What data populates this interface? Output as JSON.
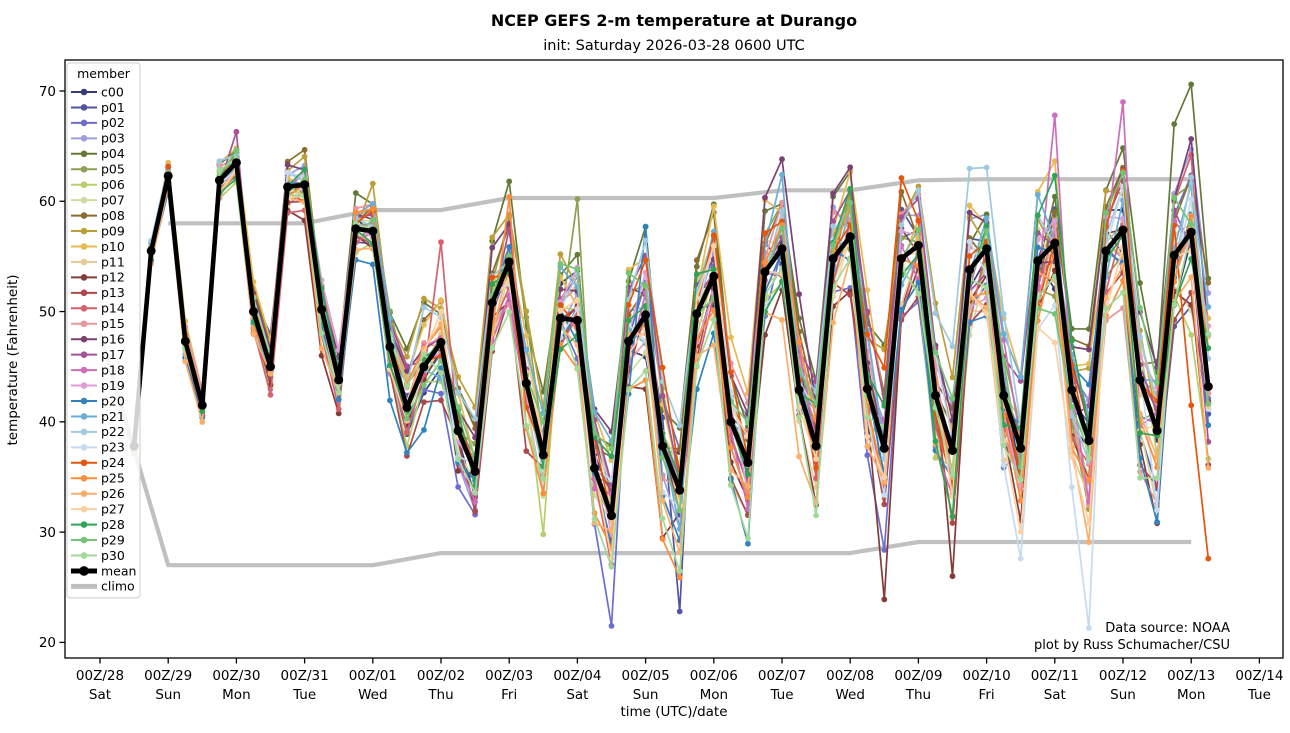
{
  "title": "NCEP GEFS 2-m temperature at Durango",
  "subtitle": "init: Saturday 2026-03-28 0600 UTC",
  "xlabel": "time (UTC)/date",
  "ylabel": "temperature (Fahrenheit)",
  "annotation": {
    "line1": "Data source: NOAA",
    "line2": "plot by Russ Schumacher/CSU"
  },
  "legend": {
    "title": "member",
    "mean_label": "mean",
    "climo_label": "climo"
  },
  "chart_data": {
    "type": "line",
    "title": "NCEP GEFS 2-m temperature at Durango",
    "subtitle": "init: Saturday 2026-03-28 0600 UTC",
    "xlabel": "time (UTC)/date",
    "ylabel": "temperature (Fahrenheit)",
    "grid": false,
    "legend_position": "upper left",
    "y_ticks": [
      20,
      30,
      40,
      50,
      60,
      70
    ],
    "ylim": [
      18.6,
      72.8
    ],
    "x_day_ticks": [
      {
        "utc": "00Z/28",
        "day": "Sat"
      },
      {
        "utc": "00Z/29",
        "day": "Sun"
      },
      {
        "utc": "00Z/30",
        "day": "Mon"
      },
      {
        "utc": "00Z/31",
        "day": "Tue"
      },
      {
        "utc": "00Z/01",
        "day": "Wed"
      },
      {
        "utc": "00Z/02",
        "day": "Thu"
      },
      {
        "utc": "00Z/03",
        "day": "Fri"
      },
      {
        "utc": "00Z/04",
        "day": "Sat"
      },
      {
        "utc": "00Z/05",
        "day": "Sun"
      },
      {
        "utc": "00Z/06",
        "day": "Mon"
      },
      {
        "utc": "00Z/07",
        "day": "Tue"
      },
      {
        "utc": "00Z/08",
        "day": "Wed"
      },
      {
        "utc": "00Z/09",
        "day": "Thu"
      },
      {
        "utc": "00Z/10",
        "day": "Fri"
      },
      {
        "utc": "00Z/11",
        "day": "Sat"
      },
      {
        "utc": "00Z/12",
        "day": "Sun"
      },
      {
        "utc": "00Z/13",
        "day": "Mon"
      },
      {
        "utc": "00Z/14",
        "day": "Tue"
      }
    ],
    "series_start_label": "12Z 28 Mar (init + 6 h)",
    "series_start_day_offset": 0.5,
    "series_step_hours": 6,
    "mean": [
      37.8,
      55.5,
      62.3,
      47.3,
      41.5,
      61.9,
      63.5,
      50.0,
      45.0,
      61.3,
      61.5,
      50.2,
      43.8,
      57.5,
      57.3,
      46.8,
      41.3,
      45.0,
      47.2,
      39.2,
      35.5,
      50.8,
      54.5,
      43.5,
      37.0,
      49.4,
      49.2,
      35.8,
      31.5,
      47.3,
      49.7,
      37.8,
      33.8,
      49.8,
      53.2,
      40.0,
      36.3,
      53.6,
      55.7,
      42.9,
      37.8,
      54.8,
      56.8,
      43.0,
      37.6,
      54.8,
      56.0,
      42.4,
      37.4,
      53.8,
      55.7,
      42.4,
      37.6,
      54.6,
      56.2,
      42.9,
      38.3,
      55.5,
      57.4,
      43.8,
      39.2,
      55.1,
      57.2,
      43.2
    ],
    "spread_halfwidth_f": [
      0.8,
      0.9,
      1.4,
      1.6,
      1.2,
      1.5,
      1.6,
      2.2,
      3.0,
      2.0,
      2.6,
      3.2,
      2.6,
      2.6,
      3.0,
      3.6,
      4.2,
      5.0,
      5.4,
      4.6,
      4.2,
      4.6,
      5.0,
      5.6,
      5.2,
      5.2,
      6.4,
      6.2,
      6.4,
      5.6,
      6.0,
      6.6,
      6.2,
      5.6,
      6.8,
      6.2,
      5.8,
      5.6,
      5.8,
      6.2,
      6.8,
      5.6,
      5.8,
      6.6,
      7.6,
      6.2,
      5.8,
      6.6,
      7.2,
      6.2,
      5.8,
      7.0,
      6.8,
      6.2,
      7.0,
      7.6,
      8.6,
      6.6,
      7.2,
      8.0,
      7.6,
      7.2,
      8.6,
      9.4
    ],
    "climo_upper_daily": {
      "start_day_index": 1,
      "values": [
        58.0,
        58.0,
        58.0,
        59.2,
        59.2,
        60.3,
        60.3,
        60.3,
        60.3,
        61.0,
        61.0,
        61.9,
        62.0,
        62.0,
        62.0,
        62.0
      ]
    },
    "climo_lower_daily": {
      "start_day_index": 0,
      "values": [
        48.0,
        27.0,
        27.0,
        27.0,
        27.0,
        28.1,
        28.1,
        28.1,
        28.1,
        28.1,
        28.1,
        28.1,
        29.1,
        29.1,
        29.1,
        29.1,
        29.1
      ]
    },
    "members": [
      {
        "name": "c00",
        "color": "#393b79"
      },
      {
        "name": "p01",
        "color": "#5254a3"
      },
      {
        "name": "p02",
        "color": "#6b6ecf"
      },
      {
        "name": "p03",
        "color": "#9c9ede"
      },
      {
        "name": "p04",
        "color": "#637939"
      },
      {
        "name": "p05",
        "color": "#8ca252"
      },
      {
        "name": "p06",
        "color": "#b5cf6b"
      },
      {
        "name": "p07",
        "color": "#cedb9c"
      },
      {
        "name": "p08",
        "color": "#8c6d31"
      },
      {
        "name": "p09",
        "color": "#bd9e39"
      },
      {
        "name": "p10",
        "color": "#e7ba52"
      },
      {
        "name": "p11",
        "color": "#e7cb94"
      },
      {
        "name": "p12",
        "color": "#843c39"
      },
      {
        "name": "p13",
        "color": "#ad494a"
      },
      {
        "name": "p14",
        "color": "#d6616b"
      },
      {
        "name": "p15",
        "color": "#e7969c"
      },
      {
        "name": "p16",
        "color": "#7b4173"
      },
      {
        "name": "p17",
        "color": "#a55194"
      },
      {
        "name": "p18",
        "color": "#ce6dbd"
      },
      {
        "name": "p19",
        "color": "#de9ed6"
      },
      {
        "name": "p20",
        "color": "#3182bd"
      },
      {
        "name": "p21",
        "color": "#6baed6"
      },
      {
        "name": "p22",
        "color": "#9ecae1"
      },
      {
        "name": "p23",
        "color": "#c6dbef"
      },
      {
        "name": "p24",
        "color": "#e6550d"
      },
      {
        "name": "p25",
        "color": "#fd8d3c"
      },
      {
        "name": "p26",
        "color": "#fdae6b"
      },
      {
        "name": "p27",
        "color": "#fdd0a2"
      },
      {
        "name": "p28",
        "color": "#31a354"
      },
      {
        "name": "p29",
        "color": "#74c476"
      },
      {
        "name": "p30",
        "color": "#a1d99b"
      }
    ],
    "member_overrides_f": {
      "p01": {
        "32": 22.8
      },
      "p02": {
        "28": 21.5
      },
      "p04": {
        "61": 67.0,
        "62": 70.6,
        "63": 53.0
      },
      "p05": {
        "26": 60.2
      },
      "p06": {
        "24": 29.8
      },
      "p09": {
        "14": 61.6
      },
      "p12": {
        "44": 23.9,
        "48": 26.0
      },
      "p14": {
        "18": 56.3
      },
      "p17": {
        "6": 66.3
      },
      "p18": {
        "54": 67.8,
        "58": 69.0
      },
      "p20": {
        "30": 57.7
      },
      "p21": {
        "38": 62.4
      },
      "p23": {
        "52": 27.6,
        "56": 21.3,
        "60": 32.0
      },
      "p24": {
        "62": 41.5,
        "63": 27.6
      },
      "p25": {
        "22": 60.4
      }
    },
    "colors": {
      "mean": "#000000",
      "climo": "#c0c0c0",
      "axis": "#000000",
      "background": "#ffffff"
    }
  }
}
